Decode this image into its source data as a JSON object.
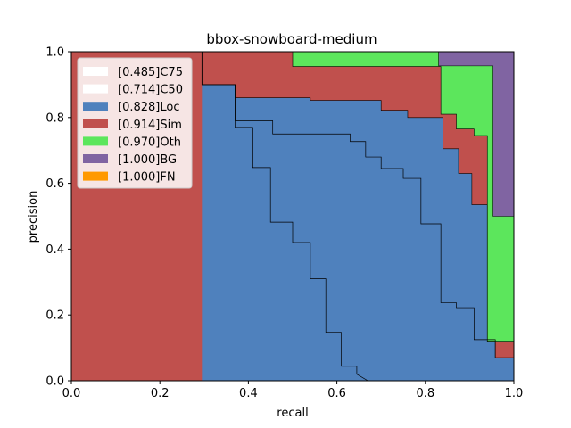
{
  "chart_data": {
    "type": "area",
    "title": "bbox-snowboard-medium",
    "xlabel": "recall",
    "ylabel": "precision",
    "xlim": [
      0,
      1
    ],
    "ylim": [
      0,
      1
    ],
    "xticks": [
      "0.0",
      "0.2",
      "0.4",
      "0.6",
      "0.8",
      "1.0"
    ],
    "yticks": [
      "0.0",
      "0.2",
      "0.4",
      "0.6",
      "0.8",
      "1.0"
    ],
    "legend_position": "top-left",
    "grid": false,
    "series": [
      {
        "name": "[1.000]FN",
        "color": "#ff9900",
        "kind": "area",
        "points": [
          [
            0,
            1
          ],
          [
            1,
            1
          ],
          [
            1,
            1
          ]
        ]
      },
      {
        "name": "[1.000]BG",
        "color": "#8064a2",
        "kind": "area",
        "points": [
          [
            0,
            1
          ],
          [
            0.83,
            1
          ],
          [
            0.83,
            1
          ],
          [
            0.97,
            1
          ],
          [
            1.0,
            1
          ],
          [
            1.0,
            0.5
          ],
          [
            1.0,
            0
          ]
        ]
      },
      {
        "name": "[0.970]Oth",
        "color": "#5ce65c",
        "kind": "area",
        "points": [
          [
            0,
            1
          ],
          [
            0.83,
            1
          ],
          [
            0.83,
            0.957
          ],
          [
            0.953,
            0.957
          ],
          [
            0.953,
            0.5
          ],
          [
            1.0,
            0.5
          ],
          [
            1.0,
            0
          ]
        ]
      },
      {
        "name": "[0.914]Sim",
        "color": "#c0504d",
        "kind": "area",
        "points": [
          [
            0,
            1
          ],
          [
            0.5,
            1
          ],
          [
            0.5,
            0.955
          ],
          [
            0.835,
            0.955
          ],
          [
            0.835,
            0.81
          ],
          [
            0.87,
            0.81
          ],
          [
            0.87,
            0.765
          ],
          [
            0.91,
            0.765
          ],
          [
            0.91,
            0.745
          ],
          [
            0.94,
            0.745
          ],
          [
            0.94,
            0.12
          ],
          [
            1.0,
            0.12
          ],
          [
            1.0,
            0
          ]
        ]
      },
      {
        "name": "[0.828]Loc",
        "color": "#4f81bd",
        "kind": "area",
        "points": [
          [
            0.295,
            1
          ],
          [
            0.295,
            0.9
          ],
          [
            0.37,
            0.9
          ],
          [
            0.37,
            0.86
          ],
          [
            0.54,
            0.86
          ],
          [
            0.54,
            0.852
          ],
          [
            0.7,
            0.852
          ],
          [
            0.7,
            0.822
          ],
          [
            0.76,
            0.822
          ],
          [
            0.76,
            0.8
          ],
          [
            0.84,
            0.8
          ],
          [
            0.84,
            0.705
          ],
          [
            0.875,
            0.705
          ],
          [
            0.875,
            0.63
          ],
          [
            0.905,
            0.63
          ],
          [
            0.905,
            0.535
          ],
          [
            0.94,
            0.535
          ],
          [
            0.94,
            0.12
          ],
          [
            0.958,
            0.12
          ],
          [
            0.958,
            0.07
          ],
          [
            1.0,
            0.07
          ],
          [
            1.0,
            0
          ]
        ]
      },
      {
        "name": "[0.714]C50",
        "color": "#000000",
        "kind": "line",
        "points": [
          [
            0.295,
            1
          ],
          [
            0.295,
            0.9
          ],
          [
            0.37,
            0.9
          ],
          [
            0.37,
            0.79
          ],
          [
            0.455,
            0.79
          ],
          [
            0.455,
            0.75
          ],
          [
            0.63,
            0.75
          ],
          [
            0.63,
            0.727
          ],
          [
            0.665,
            0.727
          ],
          [
            0.665,
            0.68
          ],
          [
            0.7,
            0.68
          ],
          [
            0.7,
            0.645
          ],
          [
            0.75,
            0.645
          ],
          [
            0.75,
            0.615
          ],
          [
            0.79,
            0.615
          ],
          [
            0.79,
            0.477
          ],
          [
            0.835,
            0.477
          ],
          [
            0.835,
            0.237
          ],
          [
            0.87,
            0.237
          ],
          [
            0.87,
            0.222
          ],
          [
            0.91,
            0.222
          ],
          [
            0.91,
            0.125
          ],
          [
            0.958,
            0.125
          ],
          [
            0.958,
            0.07
          ],
          [
            1.0,
            0.07
          ]
        ]
      },
      {
        "name": "[0.485]C75",
        "color": "#000000",
        "kind": "line",
        "points": [
          [
            0.295,
            1
          ],
          [
            0.295,
            0.9
          ],
          [
            0.37,
            0.9
          ],
          [
            0.37,
            0.77
          ],
          [
            0.41,
            0.77
          ],
          [
            0.41,
            0.648
          ],
          [
            0.45,
            0.648
          ],
          [
            0.45,
            0.482
          ],
          [
            0.5,
            0.482
          ],
          [
            0.5,
            0.42
          ],
          [
            0.54,
            0.42
          ],
          [
            0.54,
            0.31
          ],
          [
            0.575,
            0.31
          ],
          [
            0.575,
            0.147
          ],
          [
            0.61,
            0.147
          ],
          [
            0.61,
            0.044
          ],
          [
            0.645,
            0.044
          ],
          [
            0.645,
            0.02
          ],
          [
            0.67,
            0.0
          ]
        ]
      }
    ],
    "legend": [
      {
        "label": "[0.485]C75",
        "color": "#ffffff"
      },
      {
        "label": "[0.714]C50",
        "color": "#ffffff"
      },
      {
        "label": "[0.828]Loc",
        "color": "#4f81bd"
      },
      {
        "label": "[0.914]Sim",
        "color": "#c0504d"
      },
      {
        "label": "[0.970]Oth",
        "color": "#5ce65c"
      },
      {
        "label": "[1.000]BG",
        "color": "#8064a2"
      },
      {
        "label": "[1.000]FN",
        "color": "#ff9900"
      }
    ]
  }
}
